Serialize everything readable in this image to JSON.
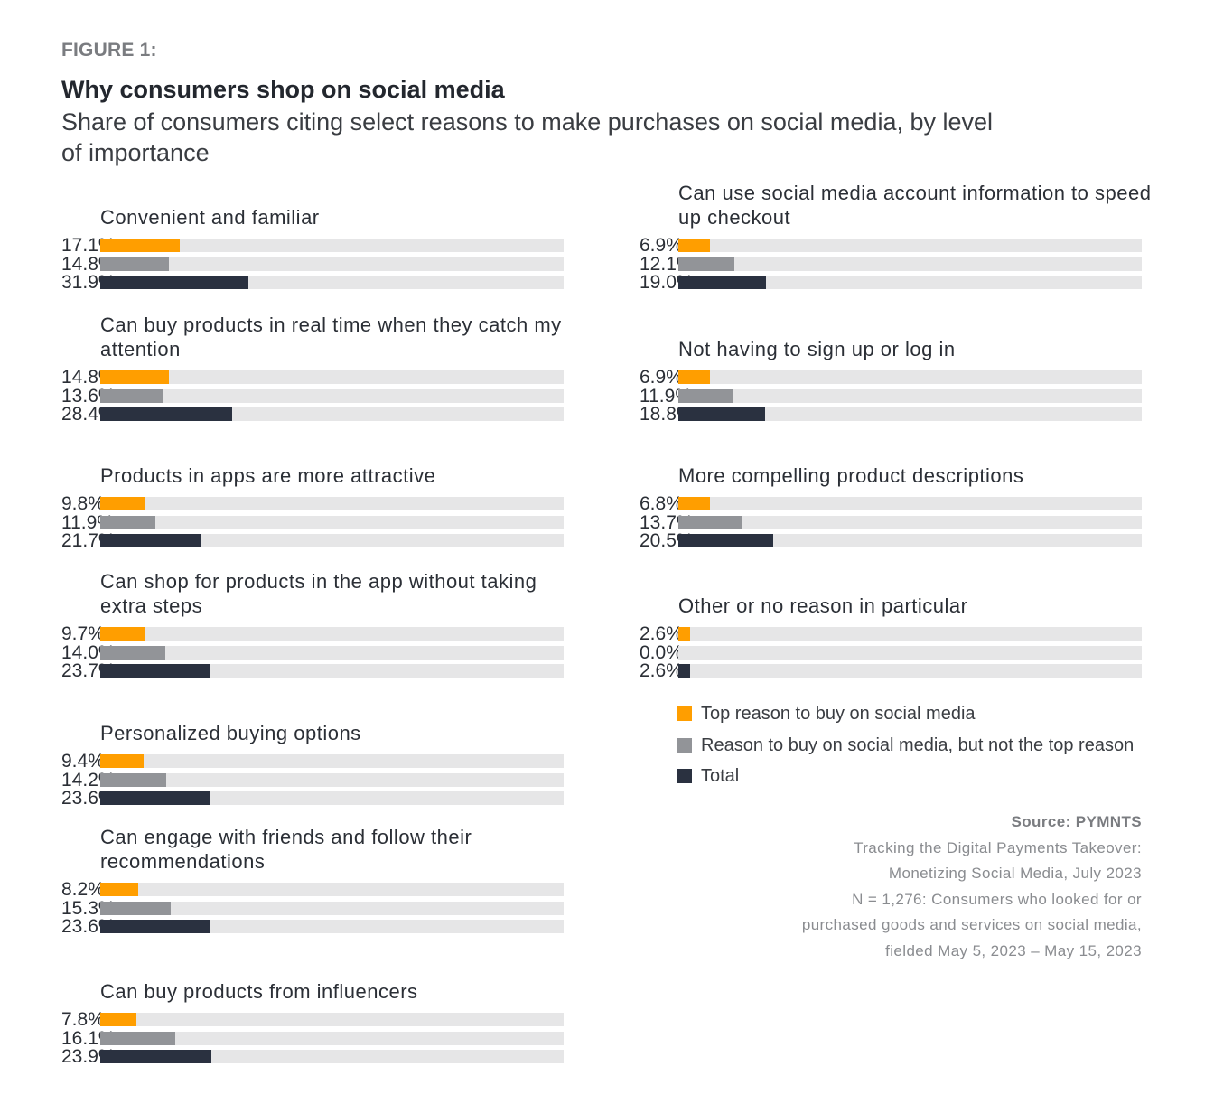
{
  "figure_label": "FIGURE 1:",
  "title": "Why consumers shop on social media",
  "subtitle": "Share of consumers citing select reasons to make purchases on social media, by level of importance",
  "colors": {
    "top_reason": "#ff9e00",
    "not_top_reason": "#929498",
    "total": "#2a3140",
    "track": "#e6e6e7"
  },
  "legend": [
    {
      "label": "Top reason to buy on social media",
      "color": "#ff9e00"
    },
    {
      "label": "Reason to buy on social media, but not the top reason",
      "color": "#929498"
    },
    {
      "label": "Total",
      "color": "#2a3140"
    }
  ],
  "source": {
    "title": "Source: PYMNTS",
    "lines": [
      "Tracking the Digital Payments Takeover:",
      "Monetizing Social Media, July 2023",
      "N = 1,276: Consumers who looked for or",
      "purchased goods and services on social media,",
      "fielded May 5, 2023 – May 15, 2023"
    ]
  },
  "chart_data": {
    "type": "bar",
    "orientation": "horizontal",
    "xlim": [
      0,
      100
    ],
    "series_names": [
      "Top reason to buy on social media",
      "Reason to buy on social media, but not the top reason",
      "Total"
    ],
    "groups": [
      {
        "label": "Convenient and familiar",
        "labels": [
          "17.1%",
          "14.8%",
          "31.9%"
        ],
        "values": [
          17.1,
          14.8,
          31.9
        ]
      },
      {
        "label": "Can buy products in real time when they catch my attention",
        "labels": [
          "14.8%",
          "13.6%",
          "28.4%"
        ],
        "values": [
          14.8,
          13.6,
          28.4
        ]
      },
      {
        "label": "Products in apps are more attractive",
        "labels": [
          "9.8%",
          "11.9%",
          "21.7%"
        ],
        "values": [
          9.8,
          11.9,
          21.7
        ]
      },
      {
        "label": "Can shop for products in the app without taking extra steps",
        "labels": [
          "9.7%",
          "14.0%",
          "23.7%"
        ],
        "values": [
          9.7,
          14.0,
          23.7
        ]
      },
      {
        "label": "Personalized buying options",
        "labels": [
          "9.4%",
          "14.2%",
          "23.6%"
        ],
        "values": [
          9.4,
          14.2,
          23.6
        ]
      },
      {
        "label": "Can engage with friends and follow their recommendations",
        "labels": [
          "8.2%",
          "15.3%",
          "23.6%"
        ],
        "values": [
          8.2,
          15.3,
          23.6
        ]
      },
      {
        "label": "Can buy products from influencers",
        "labels": [
          "7.8%",
          "16.1%",
          "23.9%"
        ],
        "values": [
          7.8,
          16.1,
          23.9
        ]
      },
      {
        "label": "Can use social media account information to speed up checkout",
        "labels": [
          "6.9%",
          "12.1%",
          "19.0%"
        ],
        "values": [
          6.9,
          12.1,
          19.0
        ]
      },
      {
        "label": "Not having to sign up or log in",
        "labels": [
          "6.9%",
          "11.9%",
          "18.8%"
        ],
        "values": [
          6.9,
          11.9,
          18.8
        ]
      },
      {
        "label": "More compelling product descriptions",
        "labels": [
          "6.8%",
          "13.7%",
          "20.5%"
        ],
        "values": [
          6.8,
          13.7,
          20.5
        ]
      },
      {
        "label": "Other or no reason in particular",
        "labels": [
          "2.6%",
          "0.0%",
          "2.6%"
        ],
        "values": [
          2.6,
          0.0,
          2.6
        ]
      }
    ]
  }
}
